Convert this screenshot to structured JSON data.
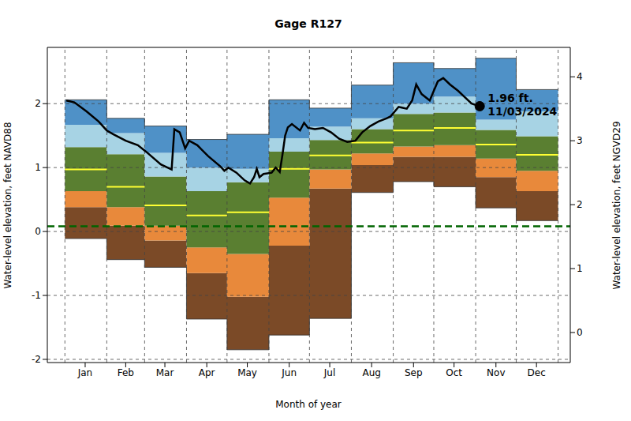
{
  "chart_data": {
    "type": "band",
    "title": "Gage R127",
    "x_label": "Month of year",
    "y_label": "Water-level elevation, feet NAVD88",
    "y2_label": "Water-level elevation, feet NGVD29",
    "xlim": [
      -12,
      375
    ],
    "xticks": [
      {
        "value": 16,
        "label": "Jan"
      },
      {
        "value": 46,
        "label": "Feb"
      },
      {
        "value": 75,
        "label": "Mar"
      },
      {
        "value": 106,
        "label": "Apr"
      },
      {
        "value": 136,
        "label": "May"
      },
      {
        "value": 167,
        "label": "Jun"
      },
      {
        "value": 197,
        "label": "Jul"
      },
      {
        "value": 228,
        "label": "Aug"
      },
      {
        "value": 259,
        "label": "Sep"
      },
      {
        "value": 289,
        "label": "Oct"
      },
      {
        "value": 320,
        "label": "Nov"
      },
      {
        "value": 350,
        "label": "Dec"
      }
    ],
    "ylim": [
      -2.05,
      2.88
    ],
    "yticks": [
      -2,
      -1,
      0,
      1,
      2
    ],
    "y2lim": [
      -0.47,
      4.46
    ],
    "y2ticks": [
      0,
      1,
      2,
      3,
      4
    ],
    "grid": true,
    "bands": {
      "x": [
        1,
        32,
        60,
        91,
        121,
        152,
        182,
        213,
        244,
        274,
        305,
        335,
        366
      ],
      "levels": [
        [
          -0.11,
          -0.44,
          -0.56,
          -1.37,
          -1.85,
          -1.62,
          -1.36,
          0.61,
          0.78,
          0.7,
          0.37,
          0.17
        ],
        [
          0.38,
          0.09,
          -0.14,
          -0.65,
          -1.02,
          -0.22,
          0.67,
          1.04,
          1.17,
          1.17,
          0.85,
          0.63
        ],
        [
          0.63,
          0.38,
          0.09,
          -0.25,
          -0.35,
          0.53,
          0.97,
          1.22,
          1.33,
          1.35,
          1.14,
          0.95
        ],
        [
          1.32,
          1.21,
          0.86,
          0.63,
          0.77,
          1.25,
          1.43,
          1.6,
          1.84,
          1.86,
          1.59,
          1.49
        ],
        [
          1.67,
          1.54,
          1.23,
          1.0,
          0.98,
          1.46,
          1.64,
          1.77,
          2.0,
          2.11,
          1.75,
          1.88
        ],
        [
          2.06,
          1.77,
          1.65,
          1.44,
          1.52,
          2.06,
          1.93,
          2.29,
          2.64,
          2.55,
          2.71,
          2.22
        ]
      ],
      "colors": [
        "#7b4a27",
        "#e8893b",
        "#5a7f31",
        "#a7d3e4",
        "#4f91c7"
      ]
    },
    "median": {
      "values": [
        0.97,
        0.7,
        0.41,
        0.25,
        0.3,
        0.98,
        1.19,
        1.39,
        1.58,
        1.62,
        1.36,
        1.2
      ],
      "color": "#ffff33"
    },
    "observed": {
      "x": [
        2,
        8,
        17,
        26,
        32,
        37,
        46,
        55,
        61,
        72,
        80,
        82,
        86,
        90,
        93,
        99,
        107,
        116,
        119,
        122,
        128,
        134,
        138,
        141,
        143,
        145,
        148,
        154,
        157,
        160,
        162,
        164,
        166,
        169,
        175,
        178,
        181,
        186,
        192,
        198,
        204,
        210,
        216,
        221,
        227,
        233,
        239,
        242,
        248,
        254,
        258,
        261,
        265,
        271,
        274,
        277,
        281,
        286,
        292,
        297,
        302,
        308
      ],
      "values": [
        2.05,
        2.02,
        1.88,
        1.72,
        1.58,
        1.52,
        1.42,
        1.35,
        1.25,
        1.05,
        0.97,
        1.6,
        1.55,
        1.3,
        1.42,
        1.35,
        1.18,
        1.02,
        0.95,
        1.0,
        0.92,
        0.8,
        0.75,
        0.85,
        0.98,
        0.85,
        0.9,
        0.92,
        1.0,
        0.93,
        1.2,
        1.5,
        1.63,
        1.68,
        1.58,
        1.7,
        1.62,
        1.6,
        1.62,
        1.55,
        1.45,
        1.4,
        1.42,
        1.55,
        1.65,
        1.72,
        1.77,
        1.8,
        1.95,
        1.92,
        2.05,
        2.3,
        2.15,
        2.05,
        2.2,
        2.35,
        2.4,
        2.3,
        2.2,
        2.1,
        2.0,
        1.96
      ],
      "color": "#000000"
    },
    "reference_line": {
      "y": 0.08,
      "color": "#006400",
      "line_style": "dashed"
    },
    "annotation": {
      "x": 308,
      "y": 1.96,
      "text": [
        "1.96 ft.",
        "11/03/2024"
      ]
    }
  }
}
